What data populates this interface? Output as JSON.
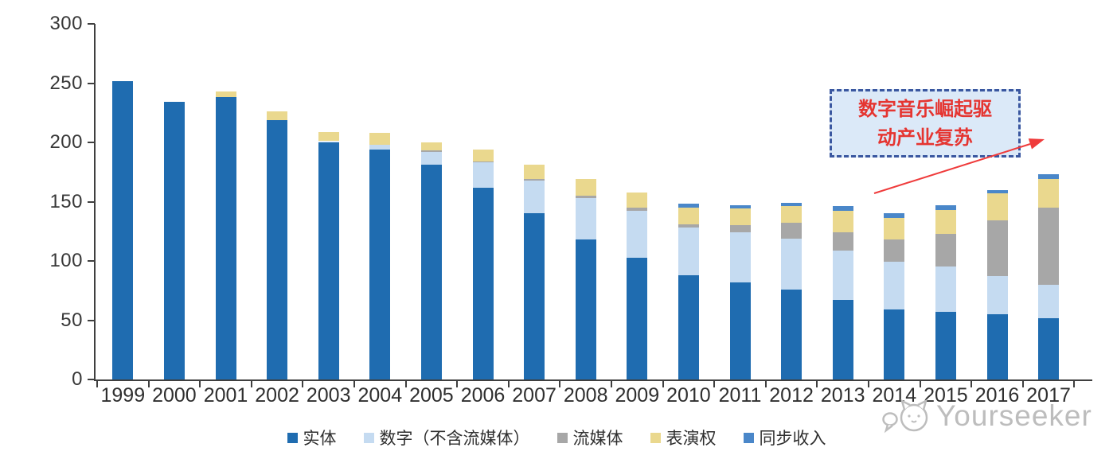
{
  "chart_data": {
    "type": "bar",
    "stacked": true,
    "title": "",
    "xlabel": "",
    "ylabel": "",
    "categories": [
      "1999",
      "2000",
      "2001",
      "2002",
      "2003",
      "2004",
      "2005",
      "2006",
      "2007",
      "2008",
      "2009",
      "2010",
      "2011",
      "2012",
      "2013",
      "2014",
      "2015",
      "2016",
      "2017"
    ],
    "series": [
      {
        "key": "physical",
        "name": "实体",
        "color": "#1f6cb0",
        "values": [
          252,
          234,
          238,
          219,
          200,
          194,
          181,
          162,
          140,
          118,
          103,
          88,
          82,
          76,
          67,
          59,
          57,
          55,
          52
        ]
      },
      {
        "key": "digital",
        "name": "数字（不含流媒体）",
        "color": "#c5dbf1",
        "values": [
          0,
          0,
          0,
          0,
          1,
          4,
          11,
          21,
          28,
          35,
          39,
          40,
          42,
          43,
          42,
          40,
          38,
          32,
          28
        ]
      },
      {
        "key": "streaming",
        "name": "流媒体",
        "color": "#a7a7a7",
        "values": [
          0,
          0,
          0,
          0,
          0,
          0,
          1,
          1,
          1,
          2,
          3,
          3,
          6,
          13,
          15,
          19,
          28,
          47,
          65
        ]
      },
      {
        "key": "performance",
        "name": "表演权",
        "color": "#ead88e",
        "values": [
          0,
          0,
          5,
          7,
          8,
          10,
          7,
          10,
          12,
          14,
          13,
          14,
          14,
          14,
          18,
          18,
          20,
          23,
          24
        ]
      },
      {
        "key": "sync",
        "name": "同步收入",
        "color": "#4a87c9",
        "values": [
          0,
          0,
          0,
          0,
          0,
          0,
          0,
          0,
          0,
          0,
          0,
          3,
          3,
          3,
          4,
          4,
          4,
          3,
          4
        ]
      }
    ],
    "ylim": [
      0,
      300
    ],
    "yticks": [
      0,
      50,
      100,
      150,
      200,
      250,
      300
    ],
    "grid": false,
    "legend_position": "bottom"
  },
  "annotation": {
    "line1": "数字音乐崛起驱",
    "line2": "动产业复苏",
    "text_color": "#e53531",
    "border_color": "#3a57a0",
    "background_color": "#dbe9f8",
    "arrow_color": "#ef3b3b"
  },
  "watermark": {
    "text": "Yourseeker"
  }
}
